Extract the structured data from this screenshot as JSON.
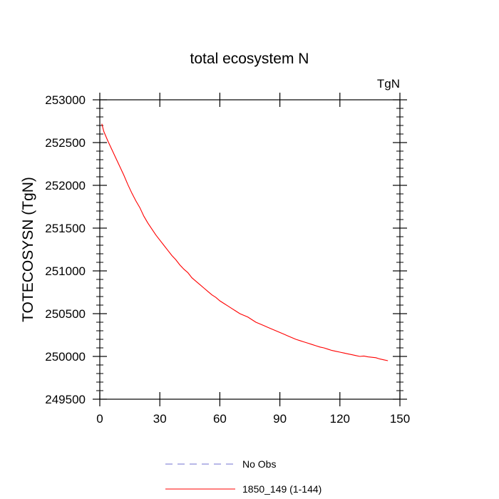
{
  "chart_data": {
    "type": "line",
    "title": "total ecosystem N",
    "units_label": "TgN",
    "ylabel": "TOTECOSYSN  (TgN)",
    "xlabel": "",
    "xlim": [
      0,
      150
    ],
    "ylim": [
      249500,
      253000
    ],
    "xticks": [
      0,
      30,
      60,
      90,
      120,
      150
    ],
    "yticks": [
      249500,
      250000,
      250500,
      251000,
      251500,
      252000,
      252500,
      253000
    ],
    "grid": false,
    "legend_position": "bottom",
    "series": [
      {
        "name": "No Obs",
        "color": "#7070d0",
        "style": "dashed",
        "x": [],
        "values": []
      },
      {
        "name": "1850_149 (1-144)",
        "color": "#ff0000",
        "style": "solid",
        "x": [
          1,
          2,
          4,
          6,
          8,
          10,
          12,
          14,
          16,
          18,
          20,
          22,
          24,
          26,
          28,
          30,
          32,
          34,
          36,
          38,
          40,
          42,
          44,
          46,
          48,
          50,
          52,
          54,
          56,
          58,
          60,
          62,
          64,
          66,
          68,
          70,
          72,
          74,
          76,
          78,
          80,
          82,
          84,
          86,
          88,
          90,
          92,
          94,
          96,
          98,
          100,
          102,
          104,
          106,
          108,
          110,
          112,
          114,
          116,
          118,
          120,
          122,
          124,
          126,
          128,
          130,
          132,
          134,
          136,
          138,
          140,
          142,
          144
        ],
        "values": [
          252720,
          252630,
          252520,
          252420,
          252320,
          252220,
          252120,
          252010,
          251910,
          251820,
          251740,
          251640,
          251560,
          251490,
          251420,
          251360,
          251300,
          251240,
          251180,
          251130,
          251070,
          251020,
          250980,
          250920,
          250880,
          250840,
          250800,
          250760,
          250720,
          250690,
          250650,
          250620,
          250590,
          250560,
          250530,
          250500,
          250480,
          250460,
          250430,
          250400,
          250380,
          250360,
          250340,
          250320,
          250300,
          250280,
          250260,
          250240,
          250220,
          250200,
          250185,
          250170,
          250155,
          250140,
          250125,
          250110,
          250100,
          250085,
          250070,
          250060,
          250050,
          250040,
          250030,
          250020,
          250010,
          250000,
          250005,
          249995,
          249990,
          249985,
          249970,
          249960,
          249950
        ]
      }
    ]
  }
}
